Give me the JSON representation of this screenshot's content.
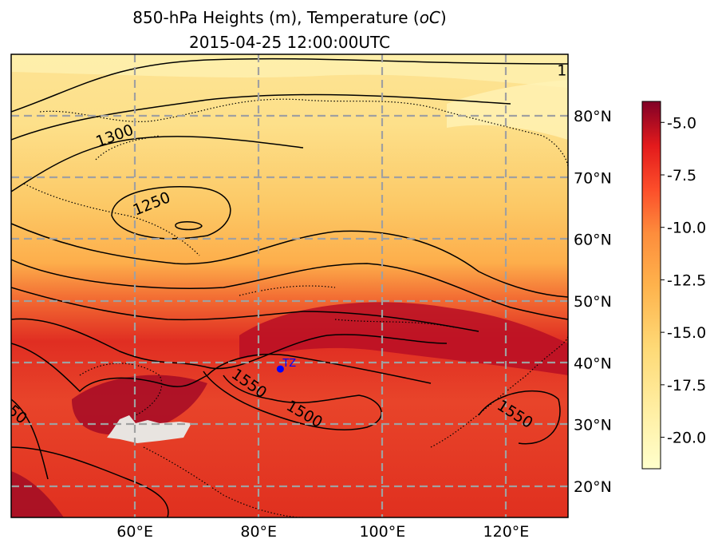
{
  "chart_data": {
    "type": "map",
    "title": "850-hPa Heights (m), Temperature (",
    "title_unit": "oC",
    "title_close": ")",
    "subtitle": "2015-04-25 12:00:00UTC",
    "lon_range": [
      40,
      130
    ],
    "lat_range": [
      15,
      90
    ],
    "lon_ticks": [
      {
        "value": 60,
        "label": "60°E"
      },
      {
        "value": 80,
        "label": "80°E"
      },
      {
        "value": 100,
        "label": "100°E"
      },
      {
        "value": 120,
        "label": "120°E"
      }
    ],
    "lat_ticks": [
      {
        "value": 80,
        "label": "80°N"
      },
      {
        "value": 70,
        "label": "70°N"
      },
      {
        "value": 60,
        "label": "60°N"
      },
      {
        "value": 50,
        "label": "50°N"
      },
      {
        "value": 40,
        "label": "40°N"
      },
      {
        "value": 30,
        "label": "30°N"
      },
      {
        "value": 20,
        "label": "20°N"
      }
    ],
    "colorbar": {
      "range": [
        -21.5,
        -4
      ],
      "ticks": [
        {
          "value": -5.0,
          "label": "-5.0"
        },
        {
          "value": -7.5,
          "label": "-7.5"
        },
        {
          "value": -10.0,
          "label": "-10.0"
        },
        {
          "value": -12.5,
          "label": "-12.5"
        },
        {
          "value": -15.0,
          "label": "-15.0"
        },
        {
          "value": -17.5,
          "label": "-17.5"
        },
        {
          "value": -20.0,
          "label": "-20.0"
        }
      ],
      "colormap": "YlOrRd"
    },
    "contour_labels": [
      {
        "text": "1300",
        "lon": 57,
        "lat": 76,
        "rotate": -20
      },
      {
        "text": "1250",
        "lon": 63,
        "lat": 65,
        "rotate": -22
      },
      {
        "text": "1550",
        "lon": 78,
        "lat": 36,
        "rotate": 35
      },
      {
        "text": "1500",
        "lon": 87,
        "lat": 31,
        "rotate": 30
      },
      {
        "text": "1550",
        "lon": 121,
        "lat": 31,
        "rotate": 32
      },
      {
        "text": "50",
        "lon": 40.5,
        "lat": 31,
        "rotate": 40
      },
      {
        "text": "1",
        "lon": 129,
        "lat": 86.5,
        "rotate": 0
      }
    ],
    "station": {
      "label": "TZ",
      "lon": 83.5,
      "lat": 39,
      "color": "#0000ff"
    },
    "grid": true
  }
}
